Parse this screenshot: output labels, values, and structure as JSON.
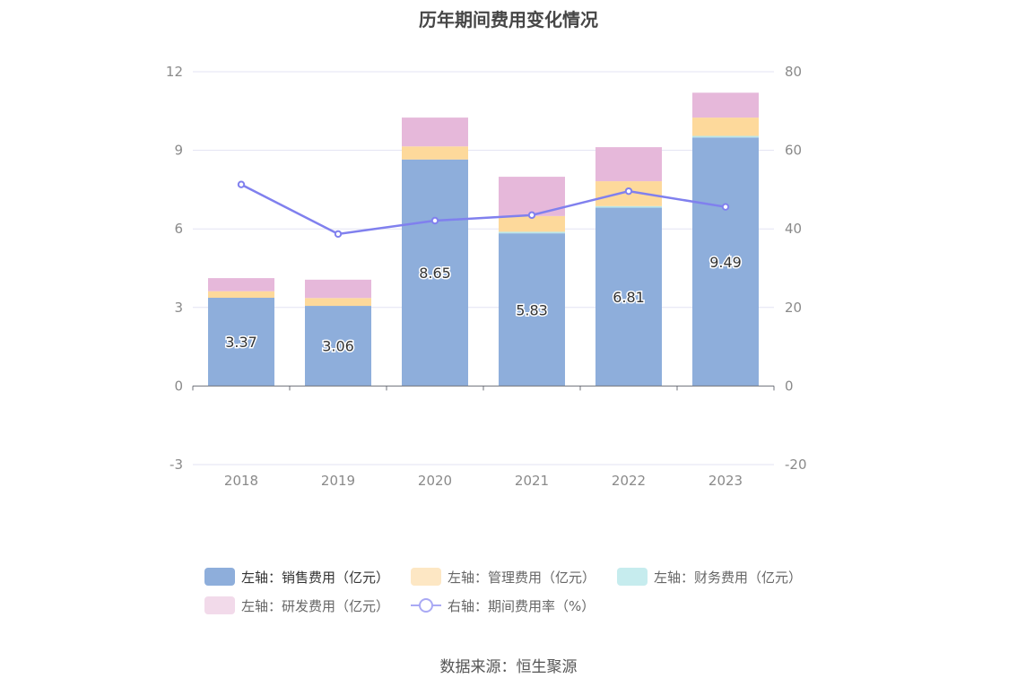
{
  "chart_data": {
    "type": "bar",
    "title": "历年期间费用变化情况",
    "categories": [
      "2018",
      "2019",
      "2020",
      "2021",
      "2022",
      "2023"
    ],
    "left_axis": {
      "min": -3,
      "max": 12,
      "ticks": [
        "-3",
        "0",
        "3",
        "6",
        "9",
        "12"
      ]
    },
    "right_axis": {
      "min": -20,
      "max": 80,
      "ticks": [
        "-20",
        "0",
        "20",
        "40",
        "60",
        "80"
      ]
    },
    "stacked_series": [
      {
        "name": "左轴：销售费用（亿元）",
        "color": "#8eaedb",
        "values": [
          3.37,
          3.06,
          8.65,
          5.83,
          6.81,
          9.49
        ],
        "data_labels": [
          "3.37",
          "3.06",
          "8.65",
          "5.83",
          "6.81",
          "9.49"
        ]
      },
      {
        "name": "左轴：财务费用（亿元）",
        "color": "#b9e6e9",
        "values": [
          0.0,
          0.0,
          0.0,
          0.06,
          0.06,
          0.06
        ]
      },
      {
        "name": "左轴：管理费用（亿元）",
        "color": "#fdd99b",
        "values": [
          0.25,
          0.3,
          0.5,
          0.6,
          0.95,
          0.7
        ]
      },
      {
        "name": "左轴：研发费用（亿元）",
        "color": "#e6b8da",
        "values": [
          0.5,
          0.7,
          1.1,
          1.5,
          1.3,
          0.95
        ]
      }
    ],
    "line_series": {
      "name": "右轴：期间费用率（%）",
      "color": "#8080ee",
      "values": [
        51.3,
        38.7,
        42.1,
        43.5,
        49.6,
        45.6
      ]
    },
    "grid": true,
    "legend_position": "bottom"
  },
  "legend": [
    {
      "label": "左轴：销售费用（亿元）",
      "color": "#8eaedb",
      "kind": "swatch"
    },
    {
      "label": "左轴：管理费用（亿元）",
      "color": "#fde7c4",
      "kind": "swatch"
    },
    {
      "label": "左轴：财务费用（亿元）",
      "color": "#c6ecee",
      "kind": "swatch"
    },
    {
      "label": "左轴：研发费用（亿元）",
      "color": "#f2daea",
      "kind": "swatch"
    },
    {
      "label": "右轴：期间费用率（%）",
      "color": "#a9a9f4",
      "kind": "line"
    }
  ],
  "source": "数据来源：恒生聚源"
}
